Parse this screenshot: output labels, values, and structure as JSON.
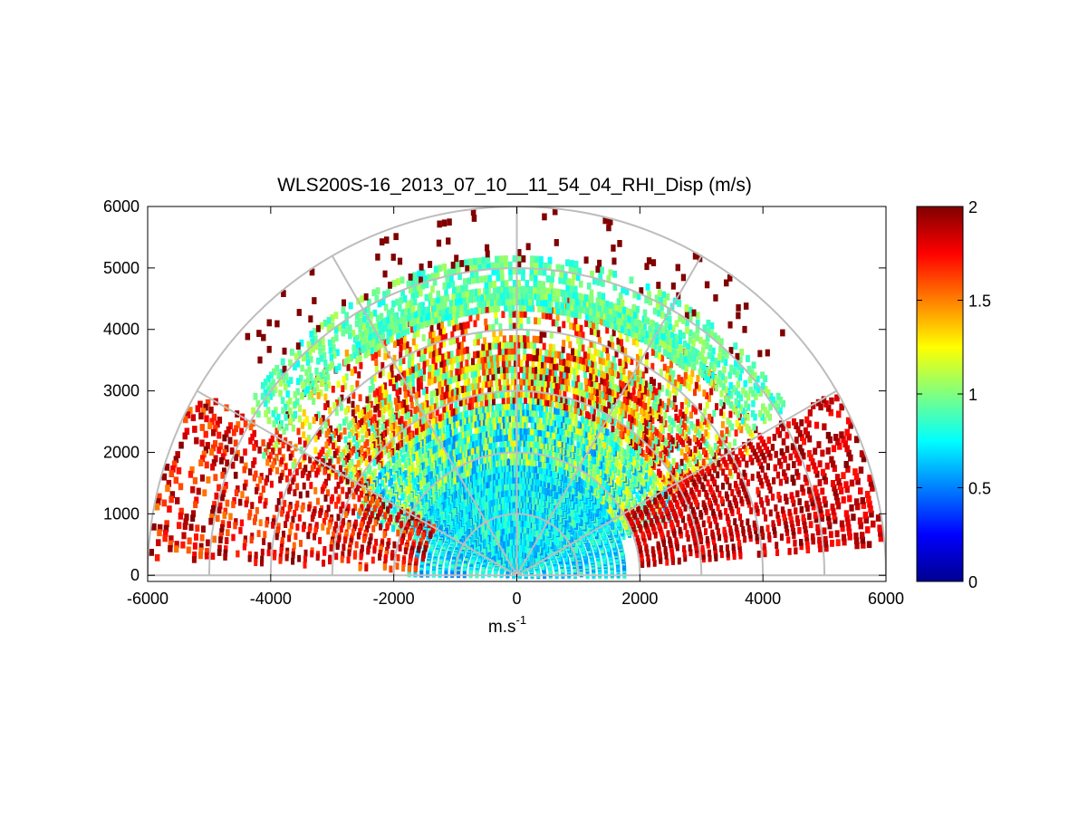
{
  "chart_data": {
    "type": "heatmap",
    "subtype": "polar-rhi-scan",
    "title": "WLS200S-16_2013_07_10__11_54_04_RHI_Disp (m/s)",
    "xlabel_base": "m.s",
    "xlabel_exponent": "-1",
    "ylabel": "",
    "xlim": [
      -6000,
      6000
    ],
    "ylim": [
      -100,
      6000
    ],
    "x_ticks": [
      "-6000",
      "-4000",
      "-2000",
      "0",
      "2000",
      "4000",
      "6000"
    ],
    "y_ticks": [
      "0",
      "1000",
      "2000",
      "3000",
      "4000",
      "5000",
      "6000"
    ],
    "polar_grid": {
      "range_rings_m": [
        1000,
        2000,
        3000,
        4000,
        5000,
        6000
      ],
      "spokes_deg": [
        0,
        30,
        60,
        90,
        120,
        150,
        180
      ]
    },
    "colorbar": {
      "colormap": "jet",
      "min": 0,
      "max": 2,
      "ticks": [
        "0",
        "0.5",
        "1",
        "1.5",
        "2"
      ]
    },
    "layers": [
      {
        "range_m": [
          0,
          1800
        ],
        "elevation_deg": [
          0,
          180
        ],
        "value_range": [
          0.5,
          0.95
        ],
        "coverage": 0.97
      },
      {
        "range_m": [
          1800,
          2800
        ],
        "elevation_deg": [
          20,
          160
        ],
        "value_range": [
          0.5,
          1.3
        ],
        "coverage": 0.9
      },
      {
        "range_m": [
          2800,
          3800
        ],
        "elevation_deg": [
          28,
          152
        ],
        "value_range": [
          0.8,
          2.0
        ],
        "coverage": 0.8
      },
      {
        "range_m": [
          3800,
          4600
        ],
        "elevation_deg": [
          25,
          155
        ],
        "value_range": [
          0.9,
          2.0
        ],
        "coverage": 0.45
      },
      {
        "range_m": [
          4300,
          4700
        ],
        "elevation_deg": [
          50,
          125
        ],
        "value_range": [
          0.75,
          1.1
        ],
        "coverage": 0.85
      },
      {
        "range_m": [
          4400,
          5200
        ],
        "elevation_deg": [
          32,
          148
        ],
        "value_range": [
          0.75,
          1.1
        ],
        "coverage": 0.6
      },
      {
        "range_m": [
          2000,
          6000
        ],
        "elevation_deg": [
          5,
          30
        ],
        "value_range": [
          1.7,
          2.0
        ],
        "coverage": 0.55
      },
      {
        "range_m": [
          1500,
          6000
        ],
        "elevation_deg": [
          150,
          178
        ],
        "value_range": [
          1.5,
          2.0
        ],
        "coverage": 0.4
      },
      {
        "range_m": [
          5000,
          6000
        ],
        "elevation_deg": [
          40,
          140
        ],
        "value_range": [
          2.0,
          2.0
        ],
        "coverage": 0.07
      }
    ]
  }
}
